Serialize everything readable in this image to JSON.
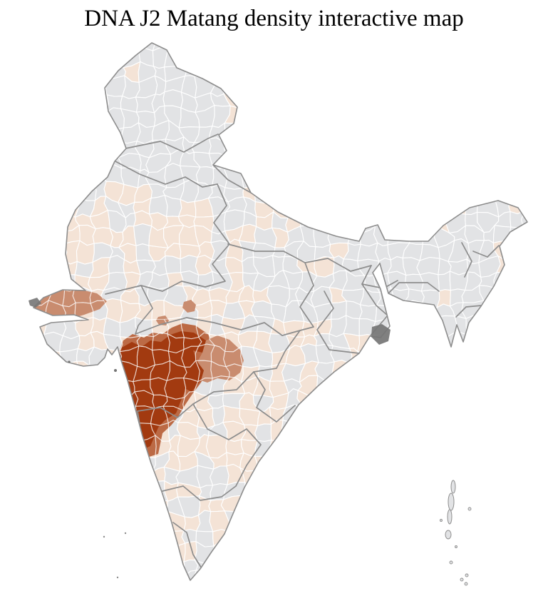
{
  "title": "DNA J2 Matang density interactive map",
  "map": {
    "name": "india-district-density-choropleth",
    "ocean_color": "#ffffff",
    "palette": {
      "none": "#e2e3e5",
      "very_low": "#f4e3d6",
      "low": "#c98c6f",
      "medium": "#bc6a45",
      "high": "#a23a10"
    },
    "borders": {
      "district": "#ffffff",
      "state": "#8d8d8d",
      "coast": "#8d8d8d",
      "marsh": "#757575"
    },
    "density_levels": [
      "none",
      "very_low",
      "low",
      "medium",
      "high"
    ],
    "regions": [
      {
        "id": "high-density-cluster",
        "level": "high"
      },
      {
        "id": "medium-density-fringe",
        "level": "medium"
      },
      {
        "id": "low-density-fringe-east",
        "level": "low"
      },
      {
        "id": "low-density-kutch",
        "level": "low"
      },
      {
        "id": "low-density-speck-1",
        "level": "low"
      },
      {
        "id": "low-density-speck-2",
        "level": "low"
      }
    ],
    "islands": [
      "andaman-nicobar-islands",
      "lakshadweep-islands"
    ],
    "marsh_patches": [
      "sundarbans-delta",
      "rann-creek",
      "konkan-coast-speck",
      "saurashtra-speck"
    ]
  }
}
